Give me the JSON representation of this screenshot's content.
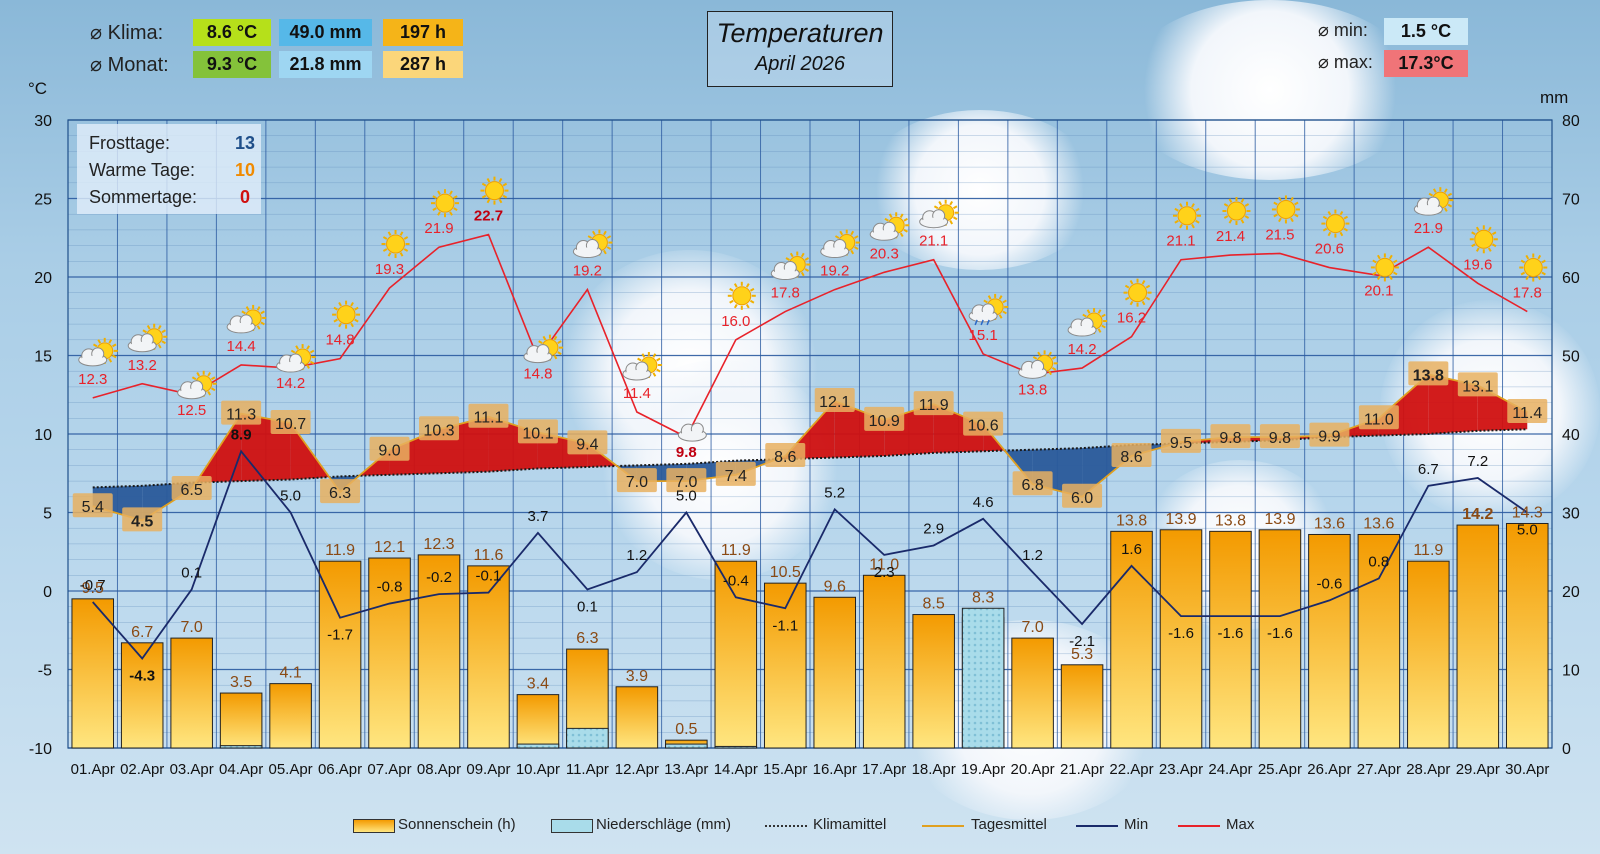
{
  "header": {
    "klima_label": "⌀ Klima:",
    "monat_label": "⌀ Monat:",
    "klima_temp": "8.6 °C",
    "klima_rain": "49.0 mm",
    "klima_sun": "197  h",
    "monat_temp": "9.3 °C",
    "monat_rain": "21.8 mm",
    "monat_sun": "287  h",
    "min_label": "⌀ min:",
    "min_value": "1.5  °C",
    "max_label": "⌀ max:",
    "max_value": "17.3°C",
    "title": "Temperaturen",
    "subtitle": "April 2026"
  },
  "stats": {
    "frost_label": "Frosttage:",
    "frost_value": "13",
    "warm_label": "Warme Tage:",
    "warm_value": "10",
    "summer_label": "Sommertage:",
    "summer_value": "0"
  },
  "colors": {
    "max_line": "#e8222a",
    "min_line": "#1a2a6a",
    "mean_line": "#e0a020",
    "above_fill": "#d01010",
    "below_fill": "#2a5a9a",
    "sun_bar": "#f6a800",
    "rain_bar": "#9fd6e6",
    "klima_temp_bg": "#b6e01a",
    "klima_rain_bg": "#56b8e8",
    "klima_sun_bg": "#f5b418",
    "monat_temp_bg": "#84c23a",
    "monat_rain_bg": "#9ed6f2",
    "monat_sun_bg": "#fbd67a",
    "min_box_bg": "#cbe9f7",
    "max_box_bg": "#f07478"
  },
  "legend": {
    "sun": "Sonnenschein (h)",
    "rain": "Niederschläge (mm)",
    "klima": "Klimamittel",
    "mean": "Tagesmittel",
    "min": "Min",
    "max": "Max"
  },
  "chart_data": {
    "type": "line",
    "ylabel": "°C",
    "y2label": "mm",
    "ylim": [
      -10,
      30
    ],
    "y2lim": [
      0,
      80
    ],
    "grid": true,
    "categories": [
      "01.Apr",
      "02.Apr",
      "03.Apr",
      "04.Apr",
      "05.Apr",
      "06.Apr",
      "07.Apr",
      "08.Apr",
      "09.Apr",
      "10.Apr",
      "11.Apr",
      "12.Apr",
      "13.Apr",
      "14.Apr",
      "15.Apr",
      "16.Apr",
      "17.Apr",
      "18.Apr",
      "19.Apr",
      "20.Apr",
      "21.Apr",
      "22.Apr",
      "23.Apr",
      "24.Apr",
      "25.Apr",
      "26.Apr",
      "27.Apr",
      "28.Apr",
      "29.Apr",
      "30.Apr"
    ],
    "series": [
      {
        "name": "Max",
        "values": [
          12.3,
          13.2,
          12.5,
          14.4,
          14.2,
          14.8,
          19.3,
          21.9,
          22.7,
          14.8,
          19.2,
          11.4,
          9.8,
          16.0,
          17.8,
          19.2,
          20.3,
          21.1,
          15.1,
          13.8,
          14.2,
          16.2,
          21.1,
          21.4,
          21.5,
          20.6,
          20.1,
          21.9,
          19.6,
          17.8
        ]
      },
      {
        "name": "Min",
        "values": [
          -0.7,
          -4.3,
          0.1,
          8.9,
          5.0,
          -1.7,
          -0.8,
          -0.2,
          -0.1,
          3.7,
          0.1,
          1.2,
          5.0,
          -0.4,
          -1.1,
          5.2,
          2.3,
          2.9,
          4.6,
          1.2,
          -2.1,
          1.6,
          -1.6,
          -1.6,
          -1.6,
          -0.6,
          0.8,
          6.7,
          7.2,
          5.0
        ]
      },
      {
        "name": "Tagesmittel",
        "values": [
          5.4,
          4.5,
          6.5,
          11.3,
          10.7,
          6.3,
          9.0,
          10.3,
          11.1,
          10.1,
          9.4,
          7.0,
          7.0,
          7.4,
          8.6,
          12.1,
          10.9,
          11.9,
          10.6,
          6.8,
          6.0,
          8.6,
          9.5,
          9.8,
          9.8,
          9.9,
          11.0,
          13.8,
          13.1,
          11.4
        ]
      },
      {
        "name": "Klimamittel",
        "values": [
          6.6,
          6.7,
          6.9,
          7.0,
          7.1,
          7.3,
          7.4,
          7.5,
          7.6,
          7.8,
          7.9,
          8.0,
          8.1,
          8.3,
          8.4,
          8.5,
          8.6,
          8.8,
          8.9,
          9.0,
          9.1,
          9.3,
          9.4,
          9.5,
          9.6,
          9.8,
          9.9,
          10.0,
          10.2,
          10.3
        ]
      },
      {
        "name": "Sonnenschein (h)",
        "values": [
          9.5,
          6.7,
          7.0,
          3.5,
          4.1,
          11.9,
          12.1,
          12.3,
          11.6,
          3.4,
          6.3,
          3.9,
          0.5,
          11.9,
          10.5,
          9.6,
          11.0,
          8.5,
          8.3,
          7.0,
          5.3,
          13.8,
          13.9,
          13.8,
          13.9,
          13.6,
          13.6,
          11.9,
          14.2,
          14.3
        ]
      },
      {
        "name": "Niederschläge (mm)",
        "values": [
          0,
          0,
          0,
          0.3,
          0,
          0,
          0,
          0,
          0,
          0.5,
          2.5,
          0,
          0.5,
          0.2,
          0,
          0,
          0,
          0,
          17.8,
          0,
          0,
          0,
          0,
          0,
          0,
          0,
          0,
          0,
          0,
          0
        ]
      }
    ],
    "weather_icons": [
      "partly",
      "partly",
      "partly",
      "partly",
      "partly",
      "sun",
      "sun",
      "sun",
      "sun",
      "partly",
      "partly",
      "partly",
      "cloud",
      "sun",
      "partly",
      "partly",
      "partly",
      "partly",
      "showers",
      "partly",
      "partly",
      "sun",
      "sun",
      "sun",
      "sun",
      "sun",
      "sun",
      "partly",
      "sun",
      "sun"
    ]
  }
}
